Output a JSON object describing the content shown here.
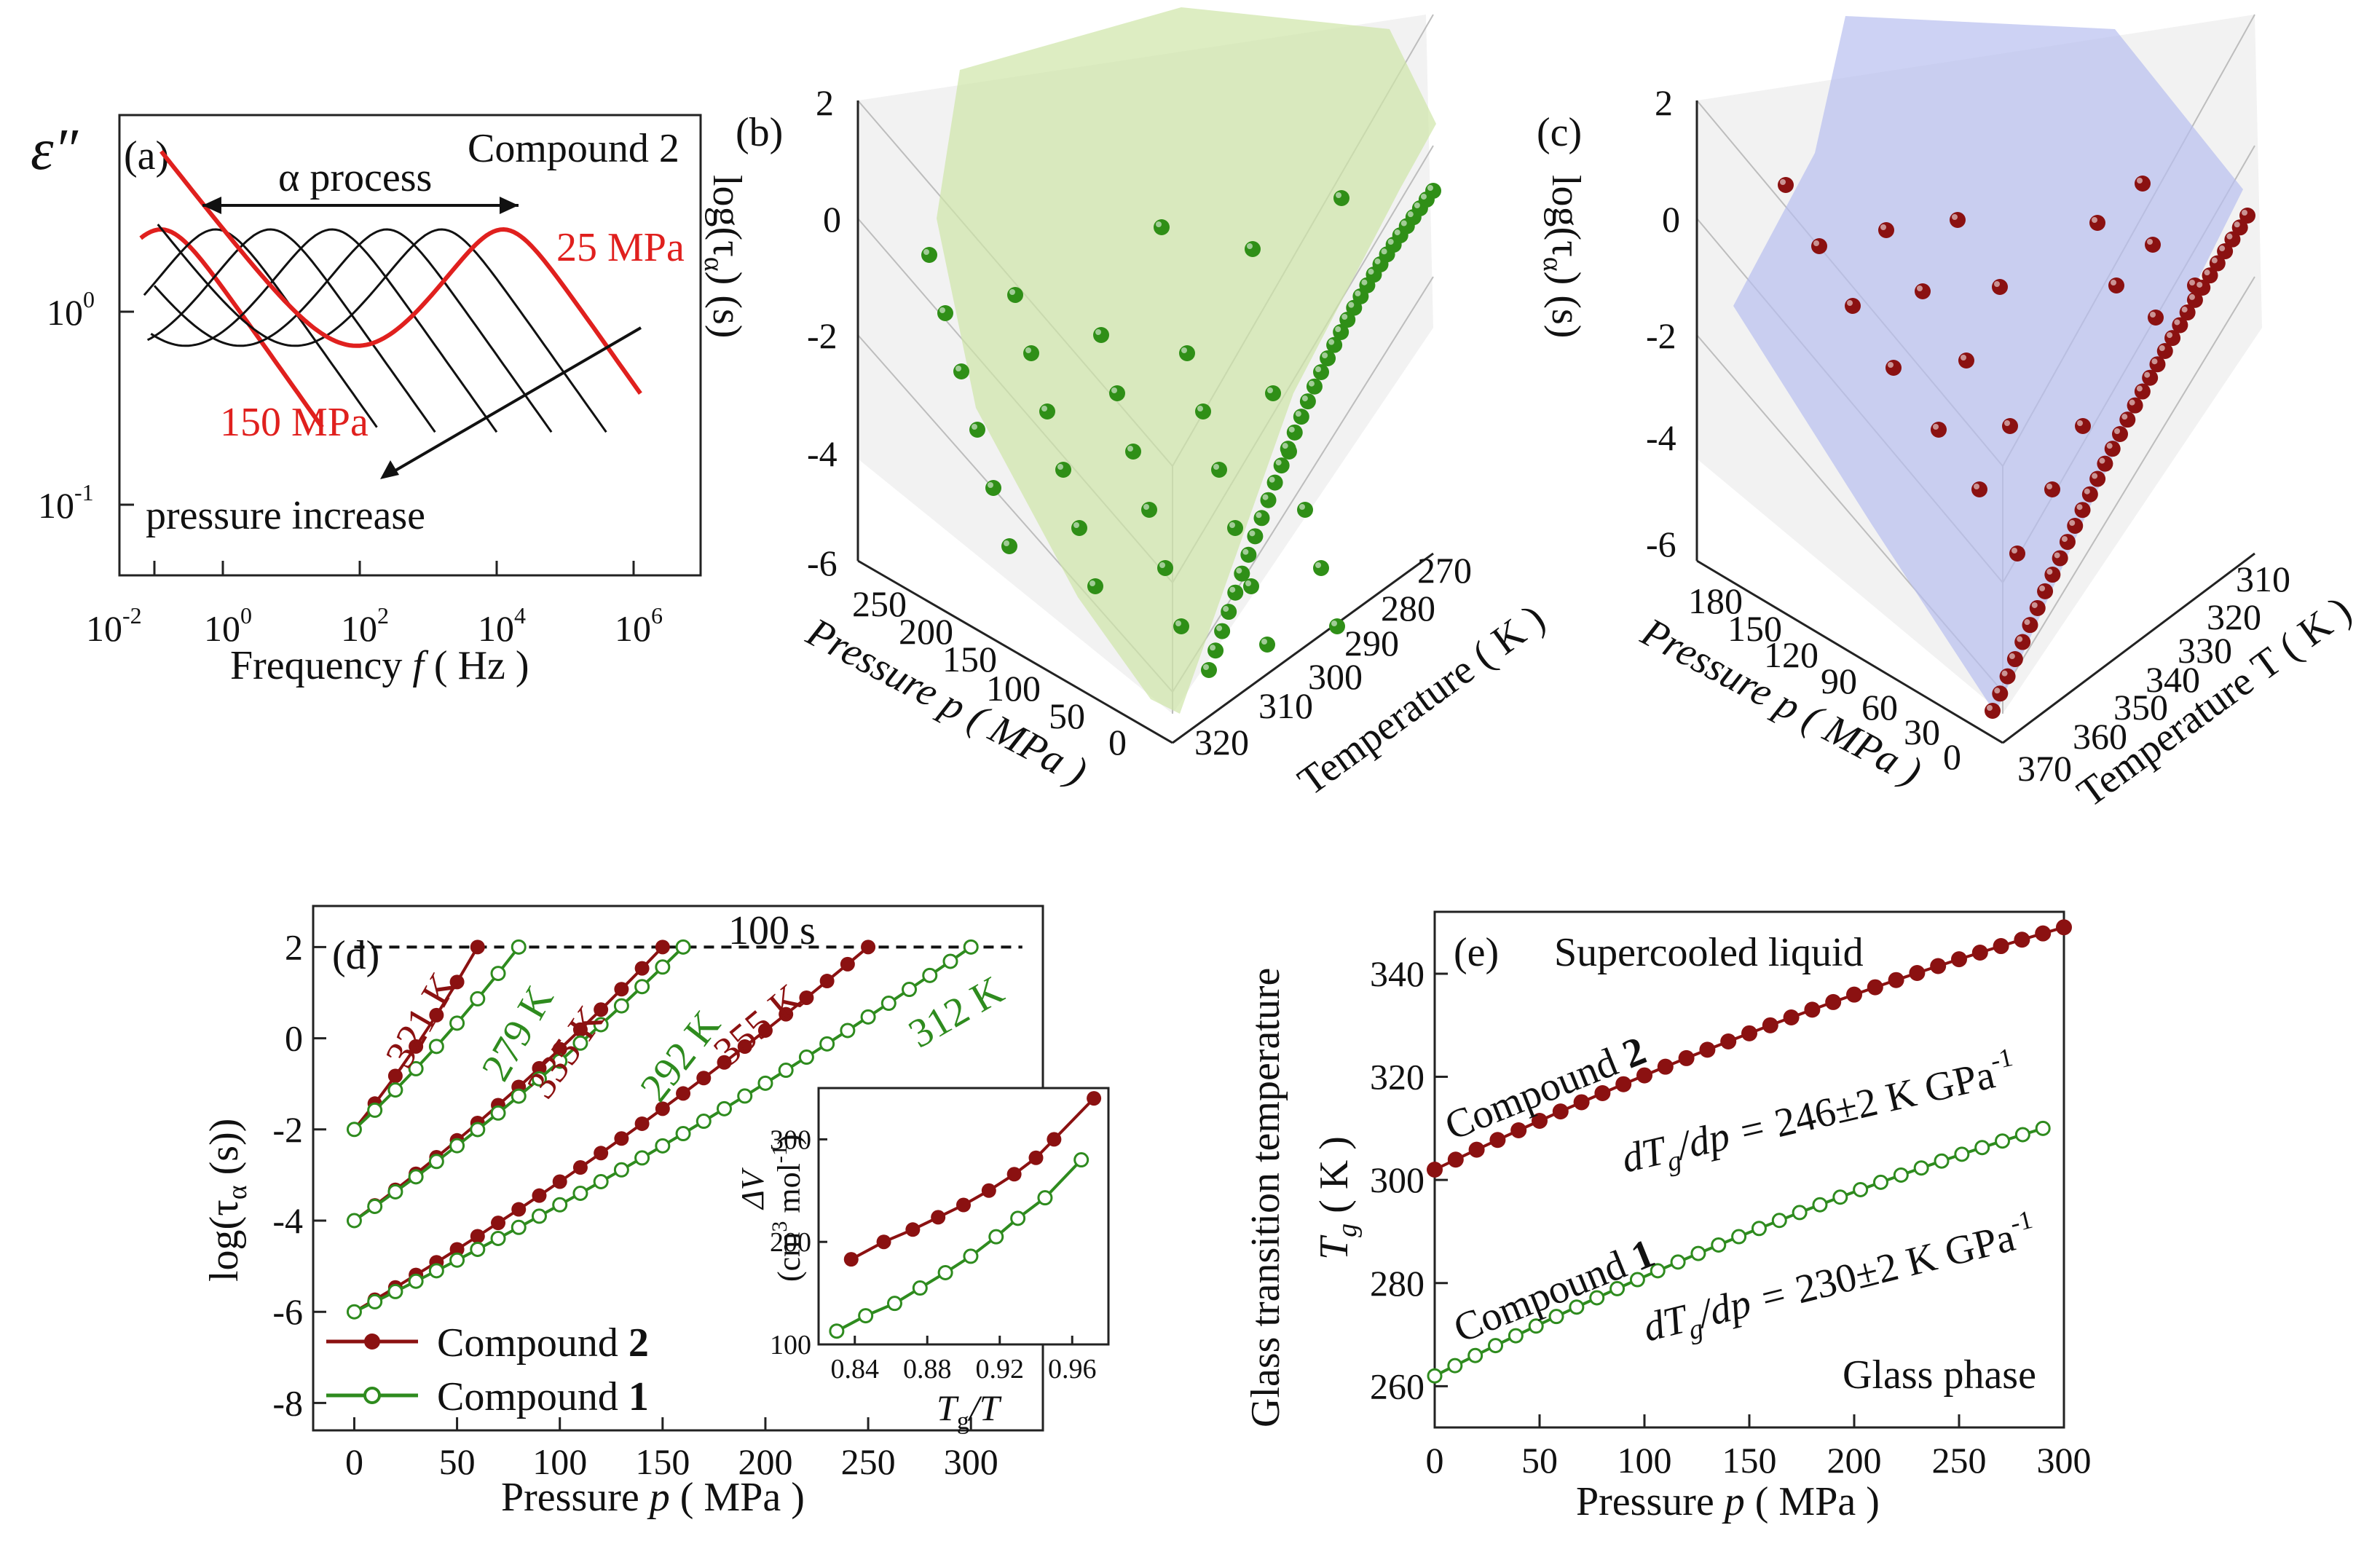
{
  "chart_data": [
    {
      "panel": "(a)",
      "type": "line",
      "compound": "Compound 2",
      "ylabel": "ε″",
      "xlabel_pre": "Frequency ",
      "xlabel_var": "f",
      "xlabel_post": " ( Hz )",
      "xscale": "log",
      "yscale": "log",
      "xticks": [
        "10",
        "10",
        "10",
        "10",
        "10"
      ],
      "xtick_exp": [
        "-2",
        "0",
        "2",
        "4",
        "6"
      ],
      "yticks": [
        "10",
        "10"
      ],
      "ytick_exp": [
        "0",
        "-1"
      ],
      "annotations": {
        "alpha": "α process",
        "p25": "25 MPa",
        "p150": "150 MPa",
        "increase": "pressure increase"
      },
      "curve_peaks_log_f": [
        -0.9,
        -0.1,
        0.7,
        1.6,
        2.4,
        3.2,
        4.1
      ],
      "highlighted": {
        "25 MPa": 4.1,
        "150 MPa": -0.9
      }
    },
    {
      "panel": "(b)",
      "type": "scatter3d",
      "zlabel": "log(τ",
      "zlabel_sub": "α",
      "zlabel_post": ") (s)",
      "zticks": [
        "2",
        "0",
        "-2",
        "-4",
        "-6"
      ],
      "pressure_label": "Pressure p  ( MPa )",
      "pressure_ticks": [
        "250",
        "200",
        "150",
        "100",
        "50",
        "0"
      ],
      "temperature_label": "Temperature ( K )",
      "temperature_ticks": [
        "270",
        "280",
        "290",
        "300",
        "310",
        "320"
      ],
      "surface_color": "#cfe6a8",
      "point_color": "#2f8f17"
    },
    {
      "panel": "(c)",
      "type": "scatter3d",
      "zlabel": "log(τ",
      "zlabel_sub": "α",
      "zlabel_post": ") (s)",
      "zticks": [
        "2",
        "0",
        "-2",
        "-4",
        "-6"
      ],
      "pressure_label": "Pressure p  ( MPa )",
      "pressure_ticks": [
        "180",
        "150",
        "120",
        "90",
        "60",
        "30",
        "0"
      ],
      "temperature_label": "Temperature T  ( K )",
      "temperature_ticks": [
        "310",
        "320",
        "330",
        "340",
        "350",
        "360",
        "370"
      ],
      "surface_color": "#b8bfef",
      "point_color": "#8b1111"
    },
    {
      "panel": "(d)",
      "type": "line",
      "xlabel_pre": "Pressure ",
      "xlabel_var": "p",
      "xlabel_post": "  ( MPa )",
      "ylabel_pre": "log(τ",
      "ylabel_sub": "α",
      "ylabel_post": " (s))",
      "xlim": [
        -20,
        335
      ],
      "ylim": [
        -8.6,
        2.9
      ],
      "xticks": [
        0,
        50,
        100,
        150,
        200,
        250,
        300
      ],
      "yticks": [
        2,
        0,
        -2,
        -4,
        -6,
        -8
      ],
      "hline": {
        "y": 2,
        "label": "100 s"
      },
      "series": [
        {
          "name": "Compound 2",
          "color": "#8b1111",
          "marker": "filled",
          "label": "321 K",
          "x": [
            0,
            60
          ],
          "y": [
            -2,
            2
          ]
        },
        {
          "name": "Compound 1",
          "color": "#2e8b1e",
          "marker": "open",
          "label": "279 K",
          "x": [
            0,
            80
          ],
          "y": [
            -2,
            2
          ]
        },
        {
          "name": "Compound 2",
          "color": "#8b1111",
          "marker": "filled",
          "label": "335 K",
          "x": [
            0,
            150
          ],
          "y": [
            -4,
            2
          ]
        },
        {
          "name": "Compound 1",
          "color": "#2e8b1e",
          "marker": "open",
          "label": "292 K",
          "x": [
            0,
            160
          ],
          "y": [
            -4,
            2
          ]
        },
        {
          "name": "Compound 2",
          "color": "#8b1111",
          "marker": "filled",
          "label": "355 K",
          "x": [
            0,
            250
          ],
          "y": [
            -6,
            2
          ]
        },
        {
          "name": "Compound 1",
          "color": "#2e8b1e",
          "marker": "open",
          "label": "312 K",
          "x": [
            0,
            300
          ],
          "y": [
            -6,
            2
          ]
        }
      ],
      "legend": [
        {
          "text": "Compound ",
          "bold": "2"
        },
        {
          "text": "Compound ",
          "bold": "1"
        }
      ],
      "inset": {
        "xlabel_var": "T",
        "xlabel_sub": "g",
        "xlabel_post": "/T",
        "ylabel1": "ΔV",
        "ylabel2": "(cm",
        "ylabel2_sup": "3",
        "ylabel2_mid": " mol",
        "ylabel2_sup2": "-1",
        "ylabel2_post": ")",
        "xlim": [
          0.82,
          0.98
        ],
        "ylim": [
          100,
          350
        ],
        "xticks": [
          "0.84",
          "0.88",
          "0.92",
          "0.96"
        ],
        "xtick_values": [
          0.84,
          0.88,
          0.92,
          0.96
        ],
        "yticks": [
          300,
          200,
          100
        ],
        "series": [
          {
            "name": "Compound 2",
            "color": "#8b1111",
            "marker": "filled",
            "x": [
              0.838,
              0.856,
              0.872,
              0.886,
              0.9,
              0.914,
              0.928,
              0.94,
              0.95,
              0.972
            ],
            "y": [
              183,
              200,
              212,
              224,
              236,
              250,
              266,
              282,
              300,
              340
            ]
          },
          {
            "name": "Compound 1",
            "color": "#2e8b1e",
            "marker": "open",
            "x": [
              0.83,
              0.846,
              0.862,
              0.876,
              0.89,
              0.904,
              0.918,
              0.93,
              0.945,
              0.965
            ],
            "y": [
              113,
              128,
              140,
              155,
              170,
              186,
              205,
              223,
              243,
              280
            ]
          }
        ]
      }
    },
    {
      "panel": "(e)",
      "type": "line",
      "title": "Supercooled liquid",
      "bottom_text": "Glass phase",
      "xlabel_pre": "Pressure ",
      "xlabel_var": "p",
      "xlabel_post": "  ( MPa )",
      "ylabel": "Glass transition temperature",
      "ylabel2_var": "T",
      "ylabel2_sub": "g",
      "ylabel2_post": "  ( K )",
      "xlim": [
        0,
        300
      ],
      "ylim": [
        252,
        352
      ],
      "xticks": [
        0,
        50,
        100,
        150,
        200,
        250,
        300
      ],
      "yticks": [
        340,
        320,
        300,
        280,
        260
      ],
      "series": [
        {
          "name": "Compound 2",
          "color": "#8b1111",
          "marker": "filled",
          "x0": 0,
          "x1": 300,
          "y0": 302,
          "y1": 349,
          "slope": "246±2 K GPa",
          "slope_exp": "-1"
        },
        {
          "name": "Compound 1",
          "color": "#2e8b1e",
          "marker": "open",
          "x0": 0,
          "x1": 290,
          "y0": 262,
          "y1": 310,
          "slope": "230±2 K GPa",
          "slope_exp": "-1"
        }
      ],
      "compound2_label": "Compound ",
      "compound2_bold": "2",
      "compound1_label": "Compound ",
      "compound1_bold": "1",
      "deriv_pre": "dT",
      "deriv_sub": "g",
      "deriv_post": "/dp = "
    }
  ]
}
